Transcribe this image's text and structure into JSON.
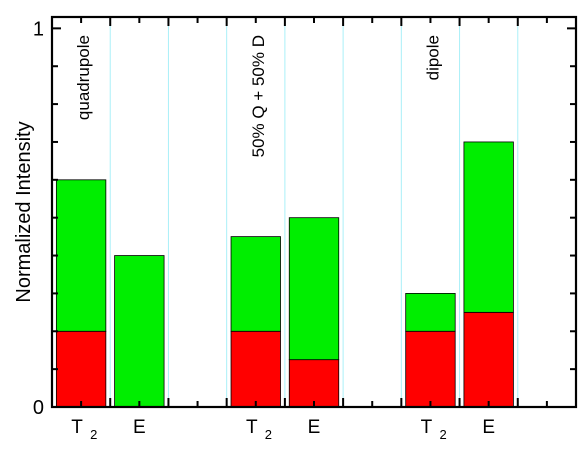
{
  "chart_data": {
    "type": "bar",
    "stacked": true,
    "ylabel": "Normalized Intensity",
    "ylim": [
      0,
      1.03
    ],
    "y_major_ticks": [
      0,
      1
    ],
    "y_tick_labels": [
      "0",
      "1"
    ],
    "y_minor_step": 0.1,
    "grid": "vertical light-cyan separator lines",
    "groups": [
      {
        "label": "quadrupole",
        "bars": [
          {
            "category": "T",
            "category_sub": "2",
            "bottom": 0.2,
            "top": 0.6
          },
          {
            "category": "E",
            "category_sub": "",
            "bottom": 0.0,
            "top": 0.4
          }
        ]
      },
      {
        "label": "50% Q + 50% D",
        "bars": [
          {
            "category": "T",
            "category_sub": "2",
            "bottom": 0.2,
            "top": 0.45
          },
          {
            "category": "E",
            "category_sub": "",
            "bottom": 0.125,
            "top": 0.5
          }
        ]
      },
      {
        "label": "dipole",
        "bars": [
          {
            "category": "T",
            "category_sub": "2",
            "bottom": 0.2,
            "top": 0.3
          },
          {
            "category": "E",
            "category_sub": "",
            "bottom": 0.25,
            "top": 0.7
          }
        ]
      }
    ],
    "colors": {
      "bottom_segment": "#ff0000",
      "top_segment": "#00ee00",
      "separator": "#aaf0f8",
      "axis": "#000000"
    }
  }
}
